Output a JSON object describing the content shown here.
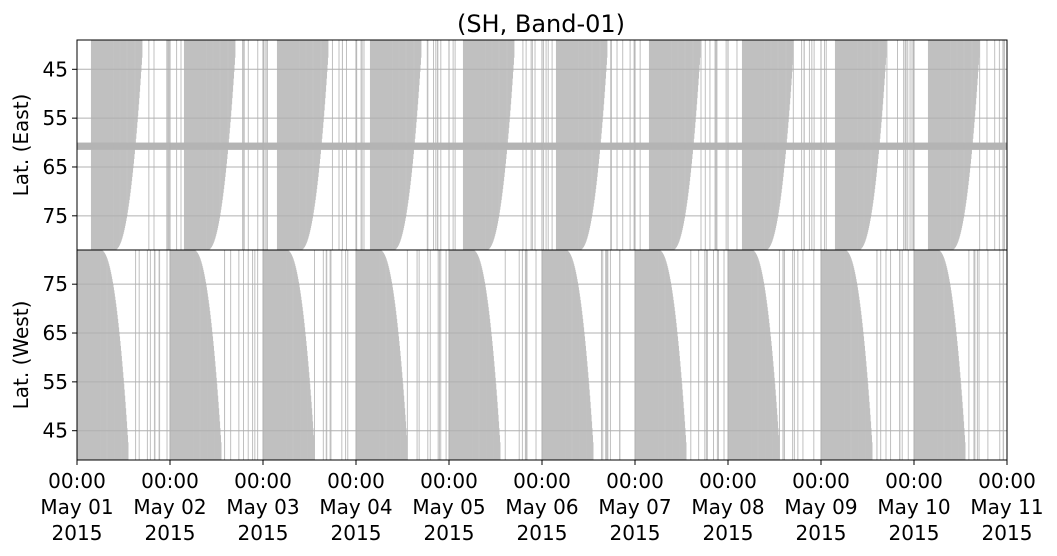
{
  "chart_data": {
    "type": "area",
    "title": "(SH, Band-01)",
    "colors": {
      "fill": "#c0c0c0",
      "dense_band": "#b4b4b4",
      "grid": "#b0b0b0",
      "frame": "#000000"
    },
    "grid": true,
    "x_ticks": [
      {
        "line1": "00:00",
        "line2": "May 01",
        "line3": "2015"
      },
      {
        "line1": "00:00",
        "line2": "May 02",
        "line3": "2015"
      },
      {
        "line1": "00:00",
        "line2": "May 03",
        "line3": "2015"
      },
      {
        "line1": "00:00",
        "line2": "May 04",
        "line3": "2015"
      },
      {
        "line1": "00:00",
        "line2": "May 05",
        "line3": "2015"
      },
      {
        "line1": "00:00",
        "line2": "May 06",
        "line3": "2015"
      },
      {
        "line1": "00:00",
        "line2": "May 07",
        "line3": "2015"
      },
      {
        "line1": "00:00",
        "line2": "May 08",
        "line3": "2015"
      },
      {
        "line1": "00:00",
        "line2": "May 09",
        "line3": "2015"
      },
      {
        "line1": "00:00",
        "line2": "May 10",
        "line3": "2015"
      },
      {
        "line1": "00:00",
        "line2": "May 11",
        "line3": "2015"
      }
    ],
    "x_range": [
      "2015-05-01 00:00",
      "2015-05-11 00:00"
    ],
    "panels": [
      {
        "ylabel": "Lat. (East)",
        "ylim": [
          39,
          82
        ],
        "inverted": true,
        "yticks": [
          45,
          55,
          65,
          75
        ],
        "coverage_cycles": [
          {
            "start_day": 0.15,
            "end_day": 0.7
          },
          {
            "start_day": 1.15,
            "end_day": 1.7
          },
          {
            "start_day": 2.15,
            "end_day": 2.7
          },
          {
            "start_day": 3.15,
            "end_day": 3.7
          },
          {
            "start_day": 4.15,
            "end_day": 4.7
          },
          {
            "start_day": 5.15,
            "end_day": 5.7
          },
          {
            "start_day": 6.15,
            "end_day": 6.7
          },
          {
            "start_day": 7.15,
            "end_day": 7.7
          },
          {
            "start_day": 8.15,
            "end_day": 8.7
          },
          {
            "start_day": 9.15,
            "end_day": 9.7
          }
        ],
        "dense_band_lat": [
          60,
          61.5
        ]
      },
      {
        "ylabel": "Lat. (West)",
        "ylim": [
          39,
          82
        ],
        "inverted": false,
        "yticks": [
          45,
          55,
          65,
          75
        ],
        "coverage_cycles": [
          {
            "start_day": 0.0,
            "end_day": 0.55
          },
          {
            "start_day": 1.0,
            "end_day": 1.55
          },
          {
            "start_day": 2.0,
            "end_day": 2.55
          },
          {
            "start_day": 3.0,
            "end_day": 3.55
          },
          {
            "start_day": 4.0,
            "end_day": 4.55
          },
          {
            "start_day": 5.0,
            "end_day": 5.55
          },
          {
            "start_day": 6.0,
            "end_day": 6.55
          },
          {
            "start_day": 7.0,
            "end_day": 7.55
          },
          {
            "start_day": 8.0,
            "end_day": 8.55
          },
          {
            "start_day": 9.0,
            "end_day": 9.55
          }
        ]
      }
    ]
  }
}
